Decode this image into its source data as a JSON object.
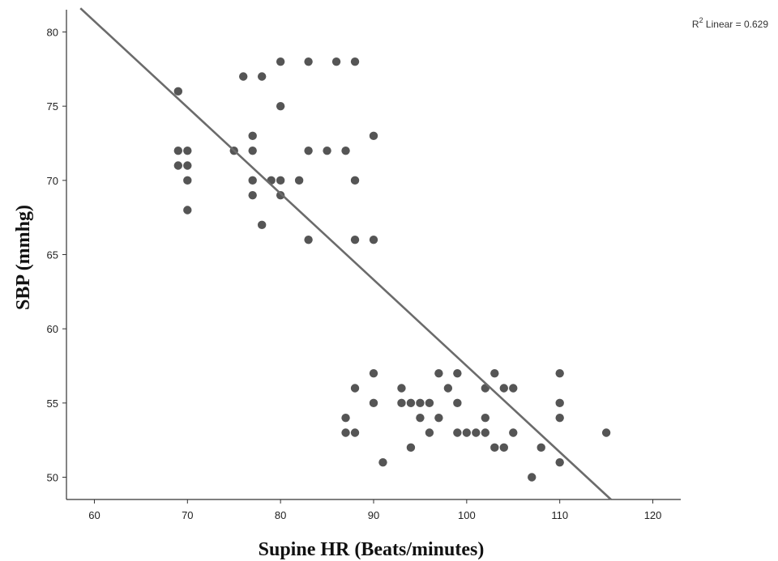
{
  "chart_data": {
    "type": "scatter",
    "title": "",
    "xlabel": "Supine HR (Beats/minutes)",
    "ylabel": "SBP (mmhg)",
    "xlim": [
      57,
      123
    ],
    "ylim": [
      48.5,
      81.5
    ],
    "x_ticks": [
      60,
      70,
      80,
      90,
      100,
      110,
      120
    ],
    "y_ticks": [
      50,
      55,
      60,
      65,
      70,
      75,
      80
    ],
    "grid": false,
    "annotation": {
      "r2_prefix": "R",
      "r2_sup": "2",
      "r2_rest": " Linear = 0.629",
      "placement": "top-right"
    },
    "point_color": "#555555",
    "line_color": "#6b6b6b",
    "fit_line": {
      "x": [
        58.5,
        115.5
      ],
      "y": [
        81.6,
        48.5
      ]
    },
    "series": [
      {
        "points": [
          [
            69,
            76
          ],
          [
            69,
            72
          ],
          [
            70,
            72
          ],
          [
            69,
            71
          ],
          [
            70,
            71
          ],
          [
            70,
            70
          ],
          [
            70,
            68
          ],
          [
            75,
            72
          ],
          [
            76,
            77
          ],
          [
            78,
            77
          ],
          [
            77,
            73
          ],
          [
            77,
            72
          ],
          [
            77,
            70
          ],
          [
            79,
            70
          ],
          [
            80,
            70
          ],
          [
            77,
            69
          ],
          [
            80,
            69
          ],
          [
            78,
            67
          ],
          [
            82,
            70
          ],
          [
            80,
            78
          ],
          [
            83,
            78
          ],
          [
            86,
            78
          ],
          [
            88,
            78
          ],
          [
            80,
            75
          ],
          [
            83,
            72
          ],
          [
            85,
            72
          ],
          [
            87,
            72
          ],
          [
            90,
            73
          ],
          [
            88,
            70
          ],
          [
            83,
            66
          ],
          [
            88,
            66
          ],
          [
            90,
            66
          ],
          [
            88,
            56
          ],
          [
            87,
            54
          ],
          [
            87,
            53
          ],
          [
            88,
            53
          ],
          [
            90,
            57
          ],
          [
            90,
            55
          ],
          [
            91,
            51
          ],
          [
            93,
            56
          ],
          [
            93,
            55
          ],
          [
            94,
            55
          ],
          [
            95,
            55
          ],
          [
            96,
            55
          ],
          [
            95,
            54
          ],
          [
            94,
            52
          ],
          [
            96,
            53
          ],
          [
            97,
            57
          ],
          [
            97,
            54
          ],
          [
            98,
            56
          ],
          [
            99,
            57
          ],
          [
            99,
            55
          ],
          [
            99,
            53
          ],
          [
            100,
            53
          ],
          [
            101,
            53
          ],
          [
            102,
            56
          ],
          [
            102,
            54
          ],
          [
            102,
            53
          ],
          [
            103,
            57
          ],
          [
            103,
            52
          ],
          [
            104,
            56
          ],
          [
            105,
            56
          ],
          [
            104,
            52
          ],
          [
            105,
            53
          ],
          [
            107,
            50
          ],
          [
            108,
            52
          ],
          [
            110,
            57
          ],
          [
            110,
            55
          ],
          [
            110,
            54
          ],
          [
            110,
            51
          ],
          [
            115,
            53
          ]
        ]
      }
    ]
  }
}
